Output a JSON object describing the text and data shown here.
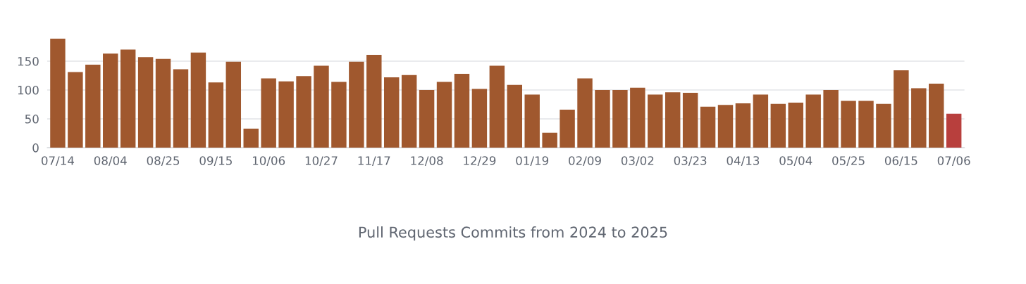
{
  "chart_data": {
    "type": "bar",
    "title": "Pull Requests Commits from 2024 to 2025",
    "categories": [
      "07/14",
      null,
      null,
      "08/04",
      null,
      null,
      "08/25",
      null,
      null,
      "09/15",
      null,
      null,
      "10/06",
      null,
      null,
      "10/27",
      null,
      null,
      "11/17",
      null,
      null,
      "12/08",
      null,
      null,
      "12/29",
      null,
      null,
      "01/19",
      null,
      null,
      "02/09",
      null,
      null,
      "03/02",
      null,
      null,
      "03/23",
      null,
      null,
      "04/13",
      null,
      null,
      "05/04",
      null,
      null,
      "05/25",
      null,
      null,
      "06/15",
      null,
      null,
      "07/06"
    ],
    "values": [
      189,
      131,
      144,
      163,
      170,
      157,
      154,
      136,
      165,
      113,
      149,
      33,
      120,
      115,
      124,
      142,
      114,
      149,
      161,
      122,
      126,
      100,
      114,
      128,
      102,
      142,
      109,
      92,
      26,
      66,
      120,
      100,
      100,
      104,
      92,
      96,
      95,
      71,
      74,
      77,
      92,
      76,
      78,
      92,
      100,
      81,
      81,
      76,
      134,
      103,
      111,
      59
    ],
    "colors": [
      "#a0582e",
      "#a0582e",
      "#a0582e",
      "#a0582e",
      "#a0582e",
      "#a0582e",
      "#a0582e",
      "#a0582e",
      "#a0582e",
      "#a0582e",
      "#a0582e",
      "#a0582e",
      "#a0582e",
      "#a0582e",
      "#a0582e",
      "#a0582e",
      "#a0582e",
      "#a0582e",
      "#a0582e",
      "#a0582e",
      "#a0582e",
      "#a0582e",
      "#a0582e",
      "#a0582e",
      "#a0582e",
      "#a0582e",
      "#a0582e",
      "#a0582e",
      "#a0582e",
      "#a0582e",
      "#a0582e",
      "#a0582e",
      "#a0582e",
      "#a0582e",
      "#a0582e",
      "#a0582e",
      "#a0582e",
      "#a0582e",
      "#a0582e",
      "#a0582e",
      "#a0582e",
      "#a0582e",
      "#a0582e",
      "#a0582e",
      "#a0582e",
      "#a0582e",
      "#a0582e",
      "#a0582e",
      "#a0582e",
      "#a0582e",
      "#a0582e",
      "#b83f3d"
    ],
    "ylim": [
      0,
      192
    ],
    "yticks": [
      0,
      50,
      100,
      150
    ],
    "grid": "y"
  }
}
